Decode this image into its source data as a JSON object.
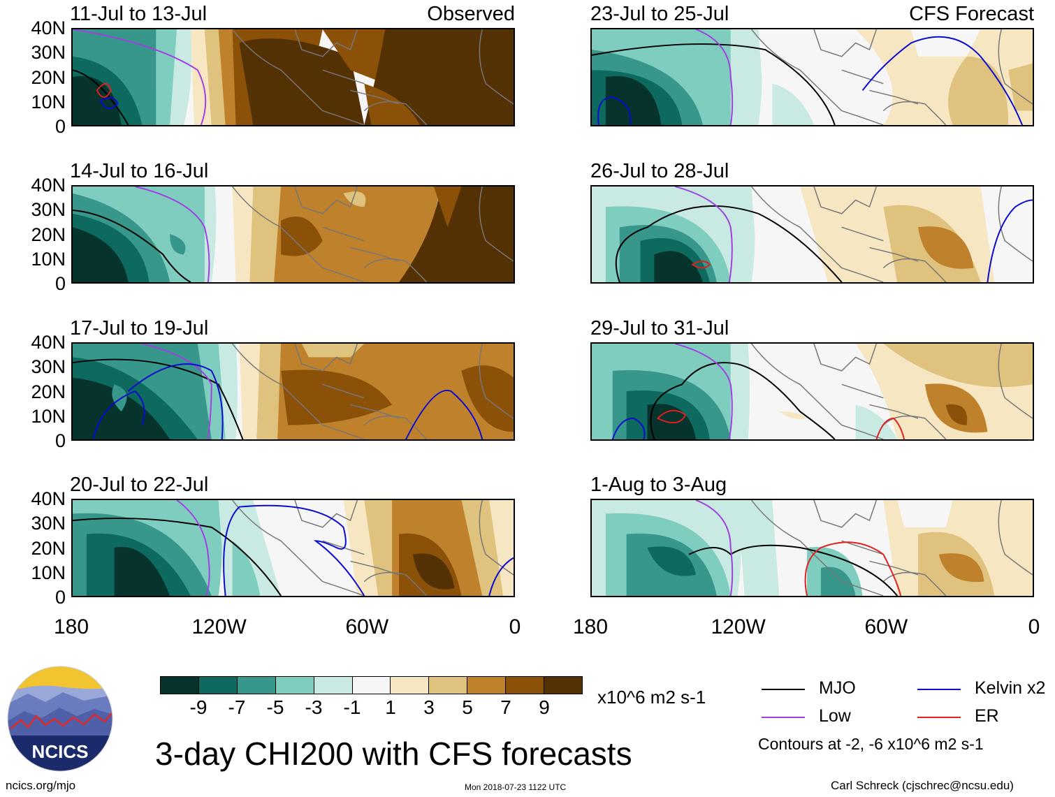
{
  "panels": [
    {
      "title": "11-Jul to 13-Jul",
      "label": "Observed",
      "column": "left"
    },
    {
      "title": "14-Jul to 16-Jul",
      "label": "",
      "column": "left"
    },
    {
      "title": "17-Jul to 19-Jul",
      "label": "",
      "column": "left"
    },
    {
      "title": "20-Jul to 22-Jul",
      "label": "",
      "column": "left"
    },
    {
      "title": "23-Jul to 25-Jul",
      "label": "CFS Forecast",
      "column": "right"
    },
    {
      "title": "26-Jul to 28-Jul",
      "label": "",
      "column": "right"
    },
    {
      "title": "29-Jul to 31-Jul",
      "label": "",
      "column": "right"
    },
    {
      "title": "1-Aug to 3-Aug",
      "label": "",
      "column": "right"
    }
  ],
  "lat_labels": [
    "40N",
    "30N",
    "20N",
    "10N",
    "0"
  ],
  "lon_labels": [
    "180",
    "120W",
    "60W",
    "0"
  ],
  "colorbar": {
    "colors": [
      "#06332c",
      "#0e6a5e",
      "#36978a",
      "#7fcdbf",
      "#c8eae2",
      "#f6f6f6",
      "#f6e7c2",
      "#dfc27d",
      "#bf812c",
      "#8c5109",
      "#543005"
    ],
    "labels": [
      "-9",
      "-7",
      "-5",
      "-3",
      "-1",
      "1",
      "3",
      "5",
      "7",
      "9"
    ],
    "units": "x10^6 m2 s-1"
  },
  "title": "3-day CHI200 with CFS forecasts",
  "legend": [
    {
      "name": "MJO",
      "color": "#000000"
    },
    {
      "name": "Kelvin x2",
      "color": "#0a0ad0"
    },
    {
      "name": "Low",
      "color": "#a040e0"
    },
    {
      "name": "ER",
      "color": "#e02020"
    }
  ],
  "contour_note": "Contours at -2, -6 x10^6 m2 s-1",
  "footer": {
    "left": "ncics.org/mjo",
    "center": "Mon 2018-07-23 1122 UTC",
    "right": "Carl Schreck (cjschrec@ncsu.edu)"
  },
  "logo": {
    "text": "NCICS"
  }
}
